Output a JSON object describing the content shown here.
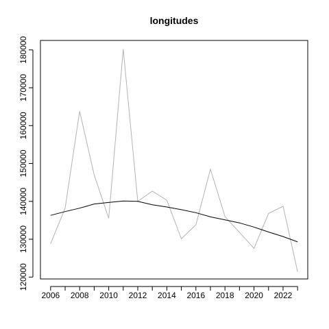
{
  "chart_data": {
    "type": "line",
    "title": "longitudes",
    "xlabel": "",
    "ylabel": "",
    "x": [
      2006,
      2007,
      2008,
      2009,
      2010,
      2011,
      2012,
      2013,
      2014,
      2015,
      2016,
      2017,
      2018,
      2019,
      2020,
      2021,
      2022,
      2023
    ],
    "xlim": [
      2005.3,
      2023.7
    ],
    "ylim": [
      119500,
      182500
    ],
    "xticks": [
      2006,
      2008,
      2010,
      2012,
      2014,
      2016,
      2018,
      2020,
      2022
    ],
    "xticks_minor": [
      2006,
      2007,
      2008,
      2009,
      2010,
      2011,
      2012,
      2013,
      2014,
      2015,
      2016,
      2017,
      2018,
      2019,
      2020,
      2021,
      2022,
      2023
    ],
    "yticks": [
      120000,
      130000,
      140000,
      150000,
      160000,
      170000,
      180000
    ],
    "grid": false,
    "series": [
      {
        "color": "#b3b3b3",
        "values": [
          128800,
          138200,
          163800,
          147000,
          135500,
          180200,
          140000,
          142700,
          140300,
          130100,
          133800,
          148500,
          136000,
          131800,
          127600,
          136800,
          138700,
          121400
        ]
      },
      {
        "color": "#000000",
        "values": [
          136300,
          137300,
          138200,
          139300,
          139700,
          140100,
          140000,
          139100,
          138500,
          137800,
          137000,
          135900,
          135100,
          134300,
          133200,
          131900,
          130700,
          129300
        ]
      }
    ]
  }
}
